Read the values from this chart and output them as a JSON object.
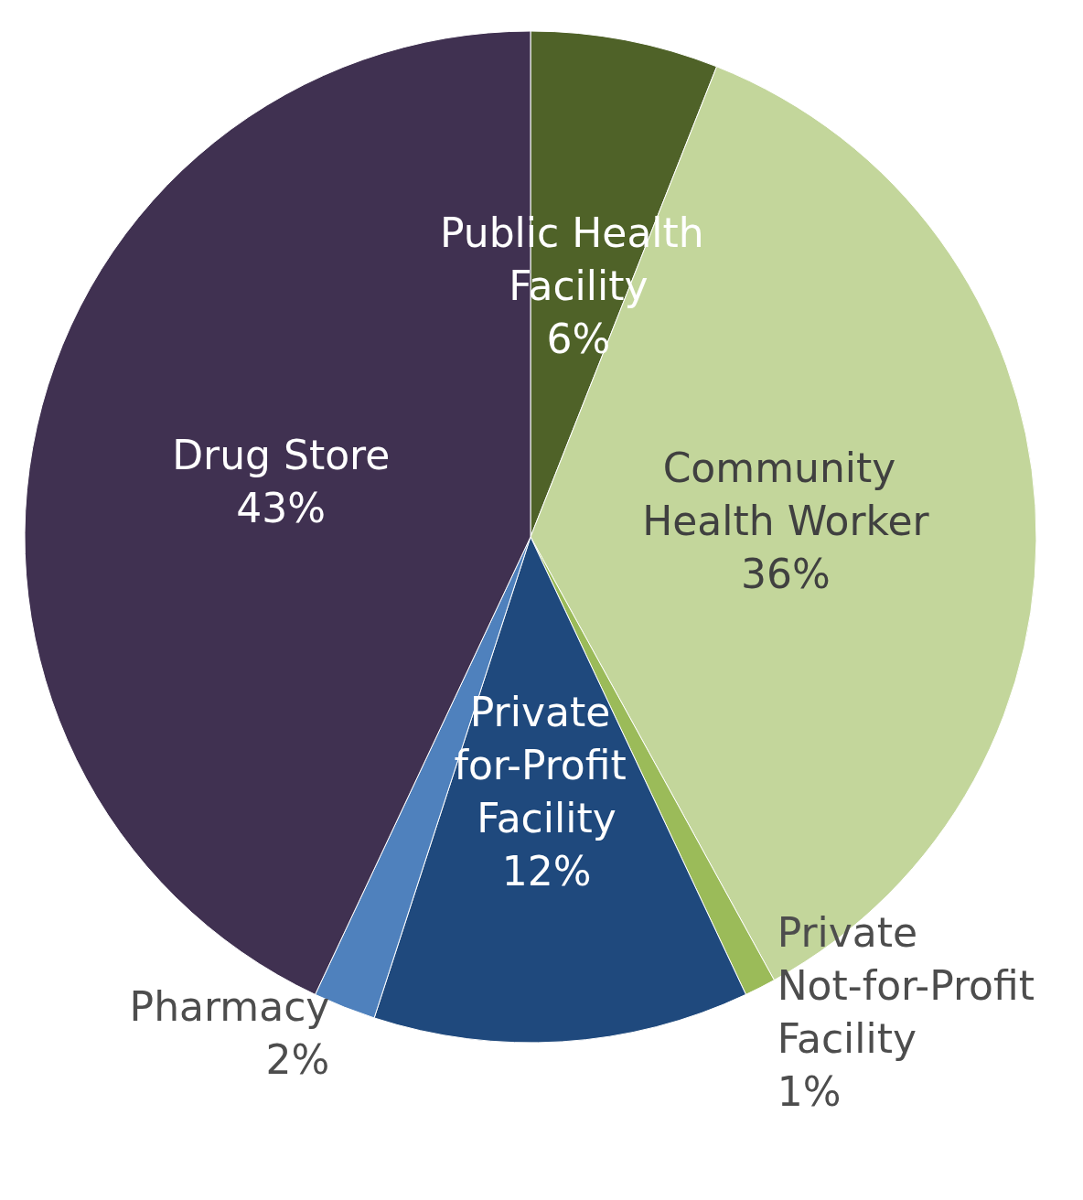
{
  "chart_data": {
    "type": "pie",
    "categories": [
      "Public Health Facility",
      "Community Health Worker",
      "Private Not-for-Profit Facility",
      "Private for-Profit Facility",
      "Pharmacy",
      "Drug Store"
    ],
    "values": [
      6,
      36,
      1,
      12,
      2,
      43
    ],
    "colors": [
      "#4f6228",
      "#c3d69b",
      "#9bbb59",
      "#1f497d",
      "#4f81bd",
      "#403151"
    ],
    "value_labels": [
      "6%",
      "36%",
      "1%",
      "12%",
      "2%",
      "43%"
    ],
    "legend": false
  }
}
